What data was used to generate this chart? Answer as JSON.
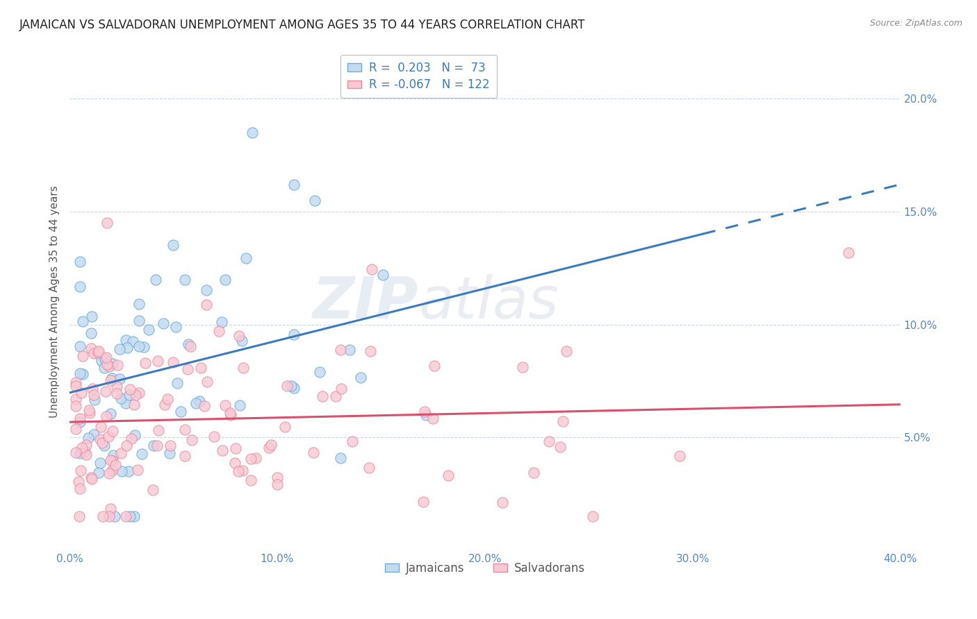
{
  "title": "JAMAICAN VS SALVADORAN UNEMPLOYMENT AMONG AGES 35 TO 44 YEARS CORRELATION CHART",
  "source": "Source: ZipAtlas.com",
  "ylabel": "Unemployment Among Ages 35 to 44 years",
  "xmin": 0.0,
  "xmax": 0.4,
  "ymin": 0.0,
  "ymax": 0.22,
  "yticks": [
    0.05,
    0.1,
    0.15,
    0.2
  ],
  "ytick_labels": [
    "5.0%",
    "10.0%",
    "15.0%",
    "20.0%"
  ],
  "xticks": [
    0.0,
    0.1,
    0.2,
    0.3,
    0.4
  ],
  "xtick_labels": [
    "0.0%",
    "10.0%",
    "20.0%",
    "30.0%",
    "40.0%"
  ],
  "jamaican_color": "#c5daf0",
  "salvadoran_color": "#f8c8d4",
  "jamaican_edge_color": "#6baed6",
  "salvadoran_edge_color": "#e88aa0",
  "jamaican_line_color": "#3a7abf",
  "salvadoran_line_color": "#d94f6e",
  "jamaican_R": 0.203,
  "jamaican_N": 73,
  "salvadoran_R": -0.067,
  "salvadoran_N": 122,
  "watermark_zip": "ZIP",
  "watermark_atlas": "atlas",
  "tick_color": "#5588bb",
  "grid_color": "#c8d8e8",
  "title_color": "#222222",
  "source_color": "#888888",
  "legend_text_color": "#3a7abf"
}
